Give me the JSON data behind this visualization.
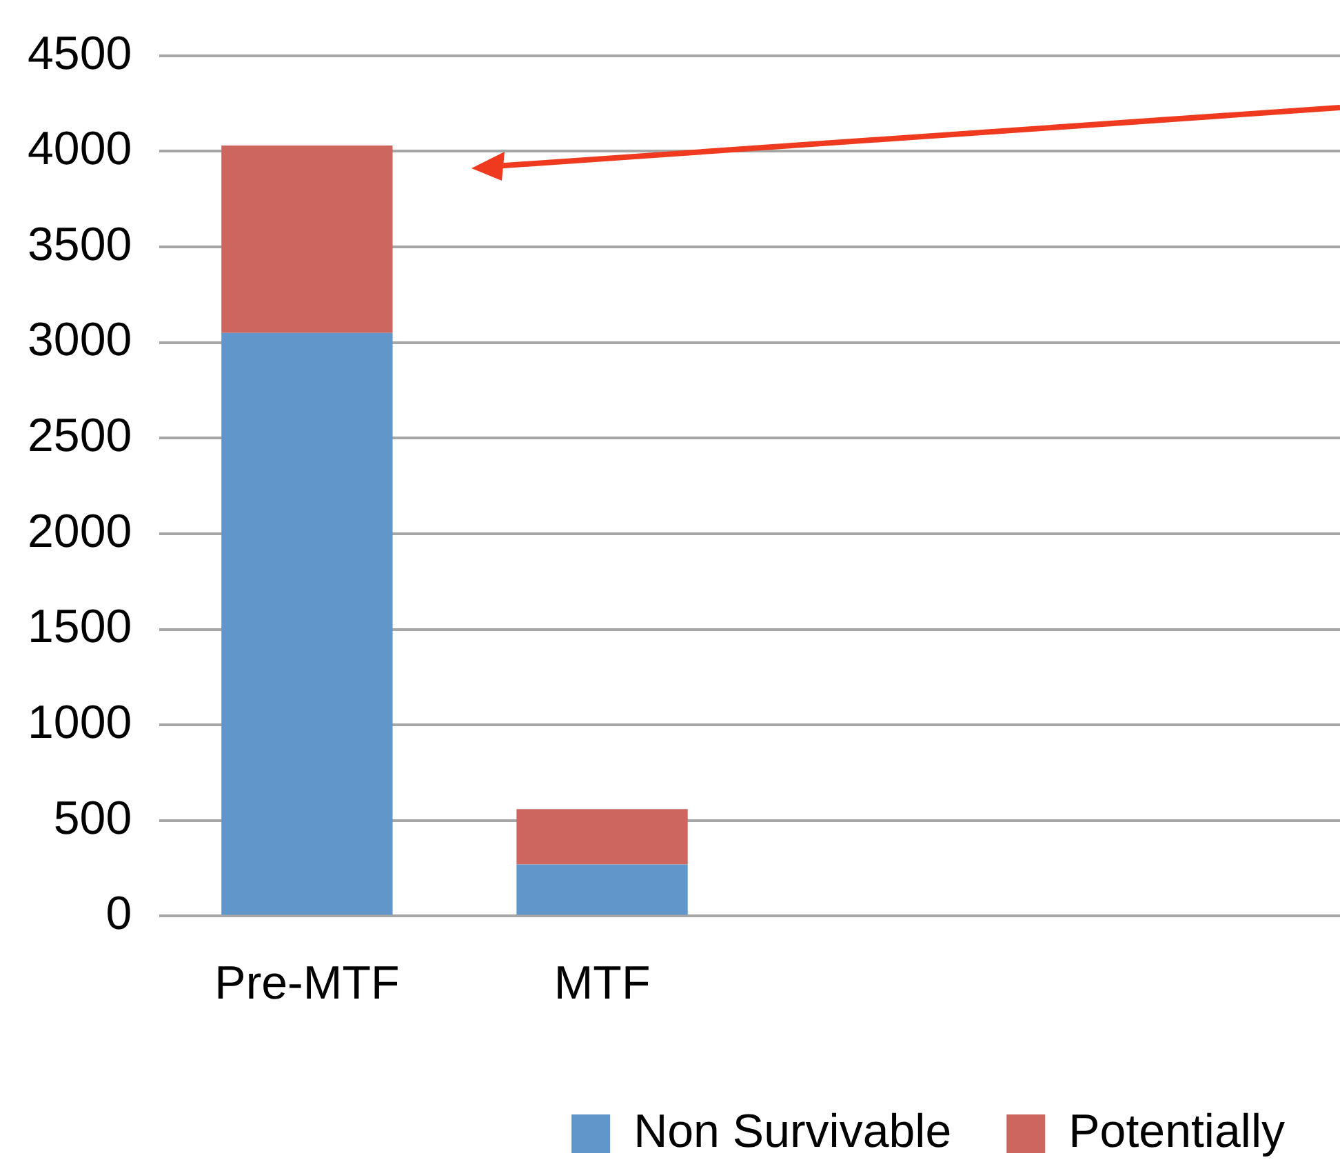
{
  "chart_data": {
    "type": "bar",
    "stacked": true,
    "categories": [
      "Pre-MTF",
      "MTF",
      null,
      null
    ],
    "series": [
      {
        "name": "Non Survivable",
        "color": "#6096c9",
        "values": [
          3050,
          270,
          null,
          null
        ]
      },
      {
        "name": "Potentially",
        "color": "#cd665f",
        "values": [
          980,
          290,
          null,
          null
        ]
      }
    ],
    "ylim": [
      0,
      4500
    ],
    "yticks": [
      0,
      500,
      1000,
      1500,
      2000,
      2500,
      3000,
      3500,
      4000,
      4500
    ],
    "grid": "y",
    "legend": "bottom"
  }
}
